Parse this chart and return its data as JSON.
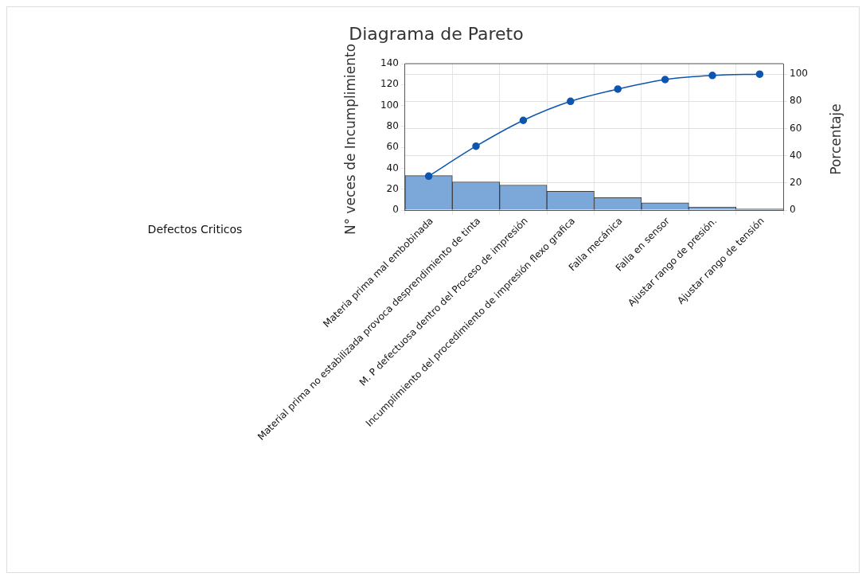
{
  "chart_data": {
    "type": "bar",
    "title": "Diagrama de Pareto",
    "xlabel": "Defectos Criticos",
    "ylabel": "N° veces de Incumplimiento",
    "y2label": "Porcentaje",
    "categories": [
      "Materia prima mal embobinada",
      "Material prima no estabilizada provoca desprendimiento de tinta",
      "M. P defectuosa dentro del Proceso de impresión",
      "Incumplimiento del procedimiento de impresión flexo grafica",
      "Falla mecánica",
      "Falla en sensor",
      "Ajustar rango de presión.",
      "Ajustar rango de tensión"
    ],
    "series": [
      {
        "color": "#7ba7d9",
        "values": [
          33,
          27,
          24,
          18,
          12,
          7,
          3,
          1
        ]
      },
      {
        "type": "line",
        "axis": "y2",
        "color": "#0d56b0",
        "values": [
          25,
          47,
          66,
          80,
          89,
          96,
          99,
          100
        ]
      }
    ],
    "ylim": [
      0,
      140
    ],
    "yticks": [
      0,
      20,
      40,
      60,
      80,
      100,
      120,
      140
    ],
    "y2lim": [
      0,
      107.7
    ],
    "y2ticks": [
      0,
      20,
      40,
      60,
      80,
      100
    ],
    "grid": true,
    "legend": false,
    "marker": "circle",
    "line_style": "solid"
  }
}
